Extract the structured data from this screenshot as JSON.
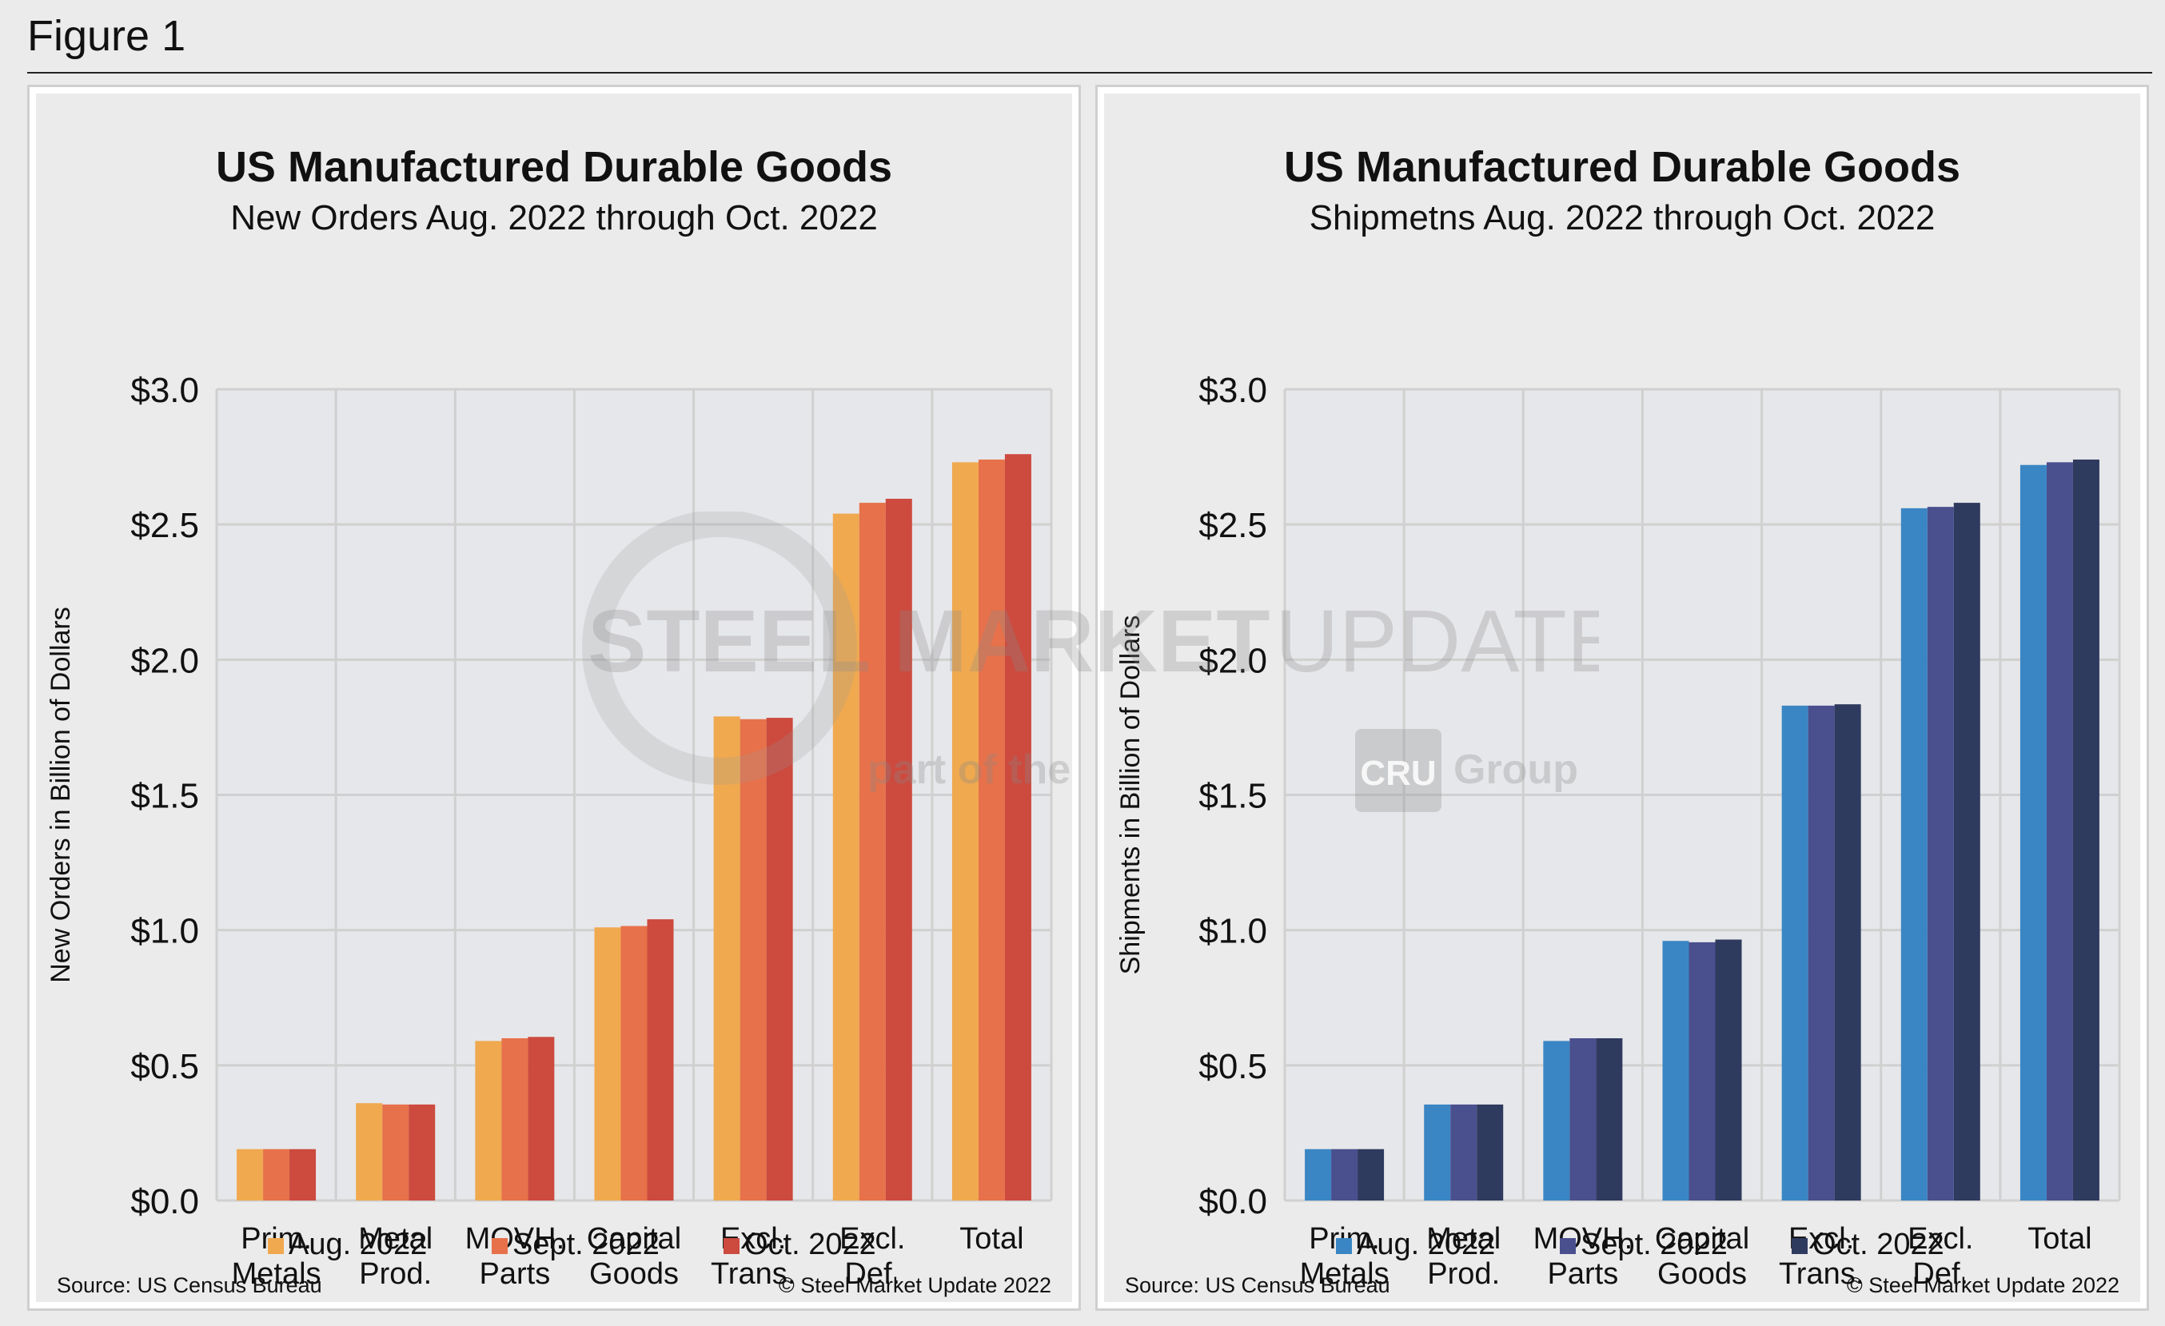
{
  "figure_label": "Figure 1",
  "watermark": {
    "line1_bold": "STEEL MARKET",
    "line1_light": "UPDATE",
    "line2_part": "part of the",
    "line2_logo": "CRU",
    "line2_group": "Group"
  },
  "colors": {
    "background": "#ebebeb",
    "panel_bg": "#ebebeb",
    "grid": "#d2d2d2",
    "orders": [
      "#f0a94f",
      "#e7714a",
      "#cc4a3e"
    ],
    "shipments": [
      "#3a86c4",
      "#4a4f8e",
      "#2f3a5f"
    ]
  },
  "chart_data": [
    {
      "type": "bar",
      "title": "US Manufactured Durable Goods",
      "subtitle": "New Orders Aug. 2022 through Oct. 2022",
      "ylabel": "New Orders in Billion of Dollars",
      "xlabel": "",
      "ylim": [
        0,
        3.0
      ],
      "yticks": [
        "$0.0",
        "$0.5",
        "$1.0",
        "$1.5",
        "$2.0",
        "$2.5",
        "$3.0"
      ],
      "ytick_values": [
        0,
        0.5,
        1.0,
        1.5,
        2.0,
        2.5,
        3.0
      ],
      "grid": true,
      "legend_position": "bottom",
      "categories": [
        [
          "Prim.",
          "Metals"
        ],
        [
          "Metal",
          "Prod."
        ],
        [
          "MOVH.",
          "Parts"
        ],
        [
          "Capital",
          "Goods"
        ],
        [
          "Excl.",
          "Trans."
        ],
        [
          "Excl.",
          "Def."
        ],
        [
          "Total"
        ]
      ],
      "series": [
        {
          "name": "Aug. 2022",
          "values": [
            0.19,
            0.36,
            0.59,
            1.01,
            1.79,
            2.54,
            2.73
          ]
        },
        {
          "name": "Sept. 2022",
          "values": [
            0.19,
            0.355,
            0.6,
            1.015,
            1.78,
            2.58,
            2.74
          ]
        },
        {
          "name": "Oct. 2022",
          "values": [
            0.19,
            0.355,
            0.605,
            1.04,
            1.785,
            2.595,
            2.76
          ]
        }
      ],
      "source": "Source: US Census Bureau",
      "copyright": "© Steel Market Update 2022"
    },
    {
      "type": "bar",
      "title": "US Manufactured Durable Goods",
      "subtitle": "Shipmetns Aug. 2022 through Oct. 2022",
      "ylabel": "Shipments in Billion of Dollars",
      "xlabel": "",
      "ylim": [
        0,
        3.0
      ],
      "yticks": [
        "$0.0",
        "$0.5",
        "$1.0",
        "$1.5",
        "$2.0",
        "$2.5",
        "$3.0"
      ],
      "ytick_values": [
        0,
        0.5,
        1.0,
        1.5,
        2.0,
        2.5,
        3.0
      ],
      "grid": true,
      "legend_position": "bottom",
      "categories": [
        [
          "Prim.",
          "Metals"
        ],
        [
          "Metal",
          "Prod."
        ],
        [
          "MOVH.",
          "Parts"
        ],
        [
          "Capital",
          "Goods"
        ],
        [
          "Excl.",
          "Trans."
        ],
        [
          "Excl.",
          "Def."
        ],
        [
          "Total"
        ]
      ],
      "series": [
        {
          "name": "Aug. 2022",
          "values": [
            0.19,
            0.355,
            0.59,
            0.96,
            1.83,
            2.56,
            2.72
          ]
        },
        {
          "name": "Sept. 2022",
          "values": [
            0.19,
            0.355,
            0.6,
            0.955,
            1.83,
            2.565,
            2.73
          ]
        },
        {
          "name": "Oct. 2022",
          "values": [
            0.19,
            0.355,
            0.6,
            0.965,
            1.835,
            2.58,
            2.74
          ]
        }
      ],
      "source": "Source: US Census Bureau",
      "copyright": "© Steel Market Update 2022"
    }
  ]
}
